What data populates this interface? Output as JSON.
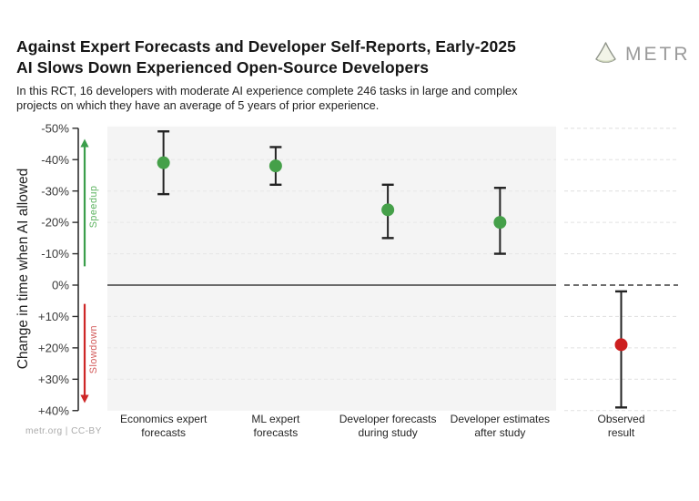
{
  "header": {
    "title_line1": "Against Expert Forecasts and Developer Self-Reports, Early-2025",
    "title_line2": "AI Slows Down Experienced Open-Source Developers",
    "subtitle_line1": "In this RCT, 16 developers with moderate AI experience complete 246 tasks in large and complex",
    "subtitle_line2": "projects on which they have an average of 5 years of prior experience.",
    "logo_text": "METR"
  },
  "footer": {
    "credit": "metr.org  |  CC-BY"
  },
  "chart_data": {
    "type": "scatter",
    "title": "Against Expert Forecasts and Developer Self-Reports, Early-2025 AI Slows Down Experienced Open-Source Developers",
    "subtitle": "In this RCT, 16 developers with moderate AI experience complete 246 tasks in large and complex projects on which they have an average of 5 years of prior experience.",
    "ylabel": "Change in time when AI allowed",
    "ylim": [
      -50,
      40
    ],
    "axis_inverted": true,
    "grid": "horizontal-dashed",
    "legend": "none",
    "y_ticks": [
      -50,
      -40,
      -30,
      -20,
      -10,
      0,
      10,
      20,
      30,
      40
    ],
    "y_tick_labels": [
      "-50%",
      "-40%",
      "-30%",
      "-20%",
      "-10%",
      "0%",
      "+10%",
      "+20%",
      "+30%",
      "+40%"
    ],
    "facets": [
      {
        "id": "forecasts",
        "background": "#f4f4f4",
        "zero_line": "solid"
      },
      {
        "id": "observed",
        "background": "#ffffff",
        "zero_line": "dashed"
      }
    ],
    "annotations": [
      {
        "label": "Speedup",
        "direction": "up",
        "v_start": -6,
        "v_end": -44,
        "color": "#3b9e4b",
        "text_color": "#5cb35f"
      },
      {
        "label": "Slowdown",
        "direction": "down",
        "v_start": 6,
        "v_end": 35,
        "color": "#ce2727",
        "text_color": "#d25757"
      }
    ],
    "points": [
      {
        "facet": "forecasts",
        "label_lines": [
          "Economics expert",
          "forecasts"
        ],
        "value": -39,
        "ci": [
          -49,
          -29
        ],
        "color": "#45a049"
      },
      {
        "facet": "forecasts",
        "label_lines": [
          "ML expert",
          "forecasts"
        ],
        "value": -38,
        "ci": [
          -44,
          -32
        ],
        "color": "#45a049"
      },
      {
        "facet": "forecasts",
        "label_lines": [
          "Developer forecasts",
          "during study"
        ],
        "value": -24,
        "ci": [
          -32,
          -15
        ],
        "color": "#45a049"
      },
      {
        "facet": "forecasts",
        "label_lines": [
          "Developer estimates",
          "after study"
        ],
        "value": -20,
        "ci": [
          -31,
          -10
        ],
        "color": "#45a049"
      },
      {
        "facet": "observed",
        "label_lines": [
          "Observed",
          "result"
        ],
        "value": 19,
        "ci": [
          2,
          39
        ],
        "color": "#cd1f1f"
      }
    ],
    "error_bar_color": "#232323",
    "colors": {
      "axis": "#2e2e2e",
      "grid_on_gray": "#e8e8e8",
      "grid_on_white": "#e2e2e2",
      "zero_line": "#3c3c3c"
    }
  }
}
